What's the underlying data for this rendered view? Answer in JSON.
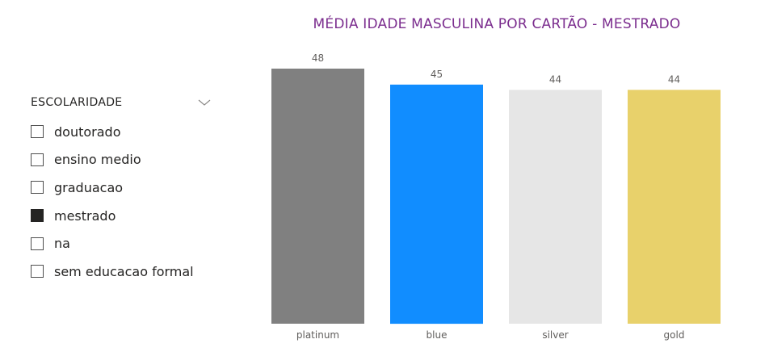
{
  "slicer": {
    "title": "ESCOLARIDADE",
    "items": [
      {
        "label": "doutorado",
        "checked": false
      },
      {
        "label": "ensino medio",
        "checked": false
      },
      {
        "label": "graduacao",
        "checked": false
      },
      {
        "label": "mestrado",
        "checked": true
      },
      {
        "label": "na",
        "checked": false
      },
      {
        "label": "sem educacao formal",
        "checked": false
      }
    ]
  },
  "chart_data": {
    "type": "bar",
    "title": "MÉDIA IDADE MASCULINA POR CARTÃO - MESTRADO",
    "categories": [
      "platinum",
      "blue",
      "silver",
      "gold"
    ],
    "values": [
      48,
      45,
      44,
      44
    ],
    "data_labels": [
      "48",
      "45",
      "44",
      "44"
    ],
    "colors": [
      "#808080",
      "#118dff",
      "#e6e6e6",
      "#e8d16b"
    ],
    "xlabel": "",
    "ylabel": "",
    "ylim": [
      0,
      48
    ],
    "grid": false,
    "legend": "none"
  },
  "colors": {
    "title": "#7b2d8e",
    "label": "#605e5c",
    "checked": "#252423"
  }
}
